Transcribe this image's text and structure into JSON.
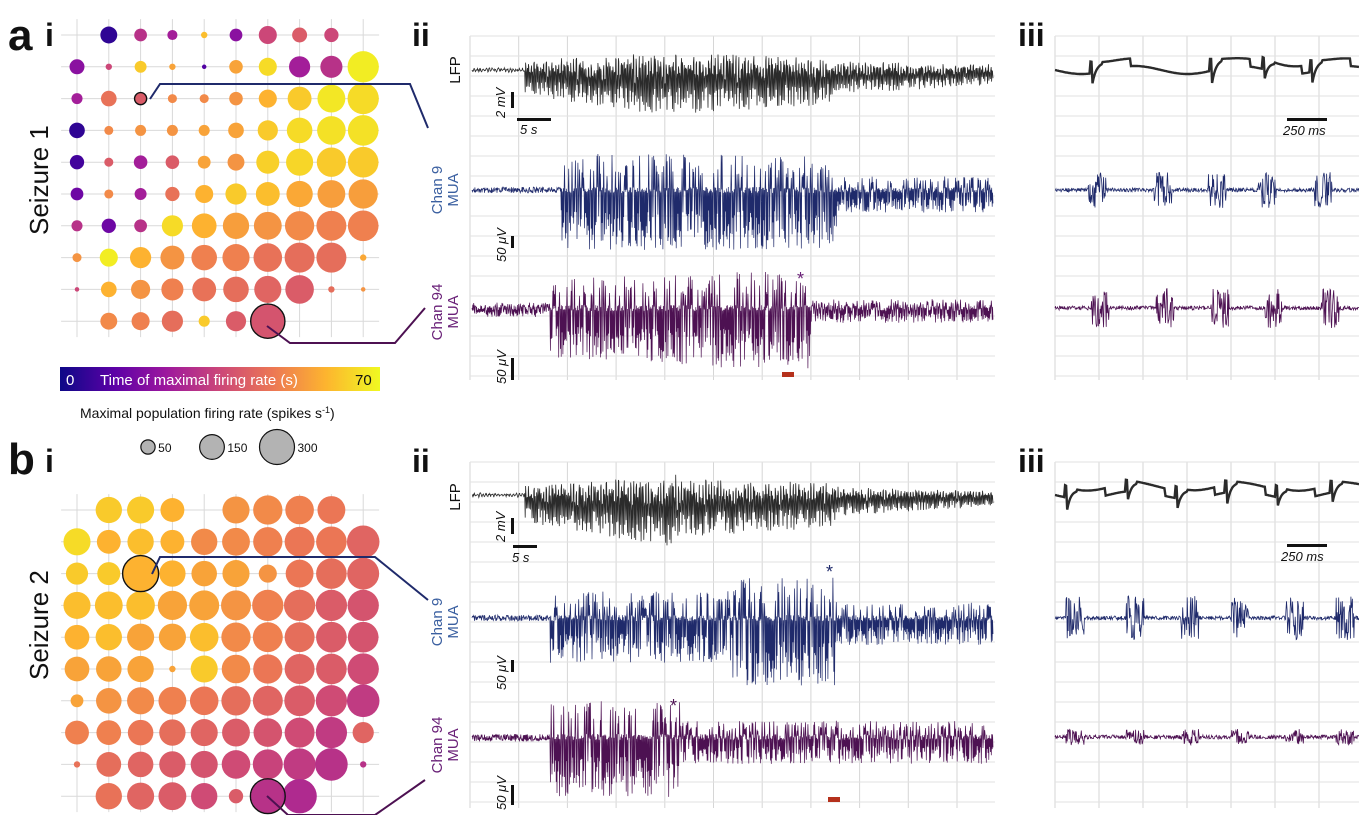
{
  "panels": {
    "a": "a",
    "b": "b",
    "i": "i",
    "ii": "ii",
    "iii": "iii",
    "seizure1": "Seizure 1",
    "seizure2": "Seizure 2"
  },
  "trace_labels": {
    "lfp": "LFP",
    "chan9_line1": "Chan 9",
    "chan9_line2": "MUA",
    "chan94_line1": "Chan 94",
    "chan94_line2": "MUA"
  },
  "scale_bars": {
    "mv": "2 mV",
    "s": "5 s",
    "uv": "50 μV",
    "ms": "250 ms"
  },
  "markers": {
    "star": "*"
  },
  "colorbar": {
    "label": "Time of maximal firing rate (s)",
    "min_label": "0",
    "max_label": "70",
    "min": 0,
    "max": 70
  },
  "size_legend": {
    "title": "Maximal population firing rate (spikes s",
    "title_sup": "-1",
    "title_end": ")",
    "entries": [
      {
        "value": 50,
        "label": "50"
      },
      {
        "value": 150,
        "label": "150"
      },
      {
        "value": 300,
        "label": "300"
      }
    ]
  },
  "colors": {
    "lfp": "#2b2b2b",
    "chan9": "#1f2a6b",
    "chan94": "#4d1152",
    "chan9_label": "#3a5fa0",
    "chan94_label": "#6a2178",
    "star_a": "#6a2178",
    "star_b9": "#1f2a6b",
    "star_b94": "#4d1152",
    "red_marker": "#b5311c",
    "grid": "#cfcfcf",
    "viridis_plasma": [
      "#0d0887",
      "#5c01a6",
      "#9c179e",
      "#cc4778",
      "#ed7953",
      "#fdb42f",
      "#f0f921"
    ]
  },
  "chart_data": [
    {
      "type": "scatter",
      "title": "Seizure 1",
      "description_from_figure": "10x10 Utah array grid; color = time of maximal firing rate (s), size = maximal population firing rate (spikes/s)",
      "grid_size": [
        10,
        10
      ],
      "time_s": [
        [
          null,
          5,
          30,
          25,
          60,
          20,
          35,
          40,
          35,
          null
        ],
        [
          20,
          35,
          62,
          55,
          10,
          55,
          65,
          25,
          30,
          68
        ],
        [
          25,
          45,
          40,
          50,
          50,
          52,
          58,
          62,
          67,
          65
        ],
        [
          5,
          50,
          52,
          52,
          55,
          55,
          62,
          65,
          66,
          66
        ],
        [
          8,
          40,
          25,
          40,
          55,
          52,
          63,
          64,
          62,
          62
        ],
        [
          15,
          50,
          25,
          45,
          58,
          62,
          60,
          56,
          54,
          54
        ],
        [
          30,
          15,
          30,
          65,
          58,
          54,
          52,
          50,
          48,
          48
        ],
        [
          52,
          68,
          58,
          52,
          48,
          48,
          45,
          44,
          44,
          56
        ],
        [
          35,
          58,
          52,
          48,
          45,
          44,
          42,
          40,
          44,
          52
        ],
        [
          null,
          50,
          48,
          44,
          62,
          40,
          38,
          null,
          null,
          null
        ]
      ],
      "rate": [
        [
          null,
          70,
          40,
          25,
          10,
          40,
          80,
          55,
          50,
          null
        ],
        [
          55,
          10,
          35,
          10,
          5,
          45,
          80,
          110,
          120,
          240
        ],
        [
          30,
          60,
          30,
          20,
          20,
          45,
          80,
          140,
          190,
          240
        ],
        [
          60,
          20,
          30,
          30,
          30,
          60,
          100,
          160,
          200,
          230
        ],
        [
          50,
          20,
          45,
          45,
          40,
          70,
          130,
          180,
          210,
          230
        ],
        [
          40,
          20,
          35,
          50,
          80,
          110,
          140,
          170,
          190,
          210
        ],
        [
          30,
          50,
          40,
          110,
          150,
          170,
          190,
          210,
          220,
          230
        ],
        [
          20,
          80,
          110,
          140,
          160,
          180,
          200,
          220,
          220,
          10
        ],
        [
          5,
          60,
          90,
          120,
          140,
          160,
          180,
          200,
          10,
          5
        ],
        [
          null,
          70,
          80,
          110,
          30,
          100,
          270,
          null,
          null,
          null
        ]
      ],
      "highlighted": [
        [
          2,
          2
        ],
        [
          9,
          6
        ]
      ]
    },
    {
      "type": "scatter",
      "title": "Seizure 2",
      "grid_size": [
        10,
        10
      ],
      "time_s": [
        [
          null,
          62,
          62,
          58,
          null,
          52,
          50,
          48,
          46,
          null
        ],
        [
          65,
          58,
          60,
          58,
          50,
          50,
          48,
          46,
          46,
          42
        ],
        [
          62,
          62,
          58,
          58,
          55,
          55,
          52,
          46,
          44,
          42
        ],
        [
          60,
          60,
          60,
          55,
          55,
          52,
          48,
          44,
          40,
          38
        ],
        [
          58,
          60,
          55,
          55,
          60,
          50,
          48,
          44,
          40,
          38
        ],
        [
          55,
          55,
          55,
          55,
          62,
          50,
          46,
          42,
          40,
          36
        ],
        [
          55,
          52,
          50,
          48,
          46,
          44,
          42,
          40,
          36,
          32
        ],
        [
          48,
          48,
          46,
          44,
          42,
          40,
          38,
          36,
          32,
          42
        ],
        [
          45,
          44,
          42,
          40,
          38,
          36,
          34,
          32,
          30,
          30
        ],
        [
          null,
          45,
          42,
          40,
          36,
          40,
          30,
          28,
          null,
          null
        ]
      ],
      "rate": [
        [
          null,
          170,
          180,
          140,
          10,
          180,
          210,
          200,
          190,
          null
        ],
        [
          180,
          140,
          170,
          140,
          170,
          190,
          210,
          220,
          230,
          260
        ],
        [
          120,
          130,
          300,
          170,
          160,
          180,
          80,
          190,
          230,
          250
        ],
        [
          180,
          190,
          200,
          210,
          220,
          220,
          240,
          240,
          240,
          240
        ],
        [
          150,
          170,
          180,
          180,
          200,
          210,
          220,
          220,
          230,
          230
        ],
        [
          150,
          160,
          170,
          10,
          180,
          200,
          210,
          220,
          230,
          240
        ],
        [
          40,
          160,
          180,
          190,
          200,
          210,
          220,
          230,
          240,
          260
        ],
        [
          140,
          150,
          160,
          170,
          180,
          190,
          200,
          220,
          240,
          110
        ],
        [
          10,
          150,
          160,
          170,
          180,
          200,
          220,
          250,
          260,
          10
        ],
        [
          null,
          170,
          180,
          190,
          170,
          50,
          280,
          290,
          null,
          null
        ]
      ],
      "highlighted": [
        [
          2,
          2
        ],
        [
          9,
          6
        ]
      ]
    }
  ]
}
